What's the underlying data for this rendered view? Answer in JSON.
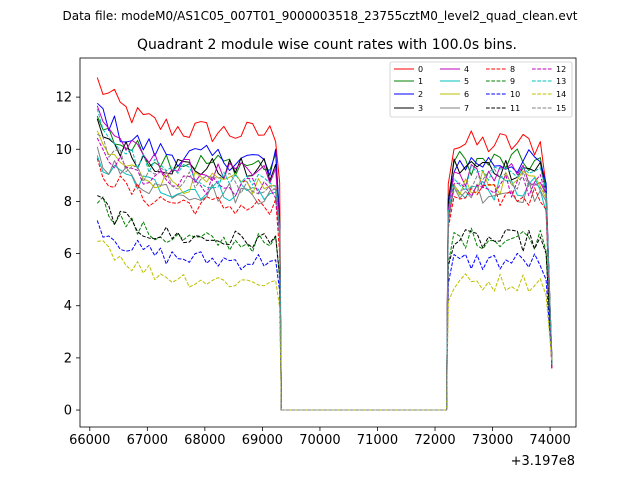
{
  "chart_data": {
    "type": "line",
    "suptitle": "Data file: modeM0/AS1C05_007T01_9000003518_23755cztM0_level2_quad_clean.evt",
    "title": "Quadrant 2 module wise count rates with 100.0s bins.",
    "xlabel": "",
    "ylabel": "",
    "x_offset_label": "+3.197e8",
    "xlim": [
      65830,
      74450
    ],
    "ylim": [
      -0.65,
      13.5
    ],
    "x_ticks": [
      66000,
      67000,
      68000,
      69000,
      70000,
      71000,
      72000,
      73000,
      74000
    ],
    "x_tick_labels": [
      "66000",
      "67000",
      "68000",
      "69000",
      "70000",
      "71000",
      "72000",
      "73000",
      "74000"
    ],
    "y_ticks": [
      0,
      2,
      4,
      6,
      8,
      10,
      12
    ],
    "y_tick_labels": [
      "0",
      "2",
      "4",
      "6",
      "8",
      "10",
      "12"
    ],
    "legend_position": "top-right",
    "segments": {
      "seg1": {
        "start": 66130,
        "step": 100,
        "count": 32,
        "x_end": 69300
      },
      "seg2": {
        "start": 72230,
        "step": 100,
        "count": 18,
        "x_end": 74030
      },
      "gap_x": [
        69330,
        72200
      ]
    },
    "series": [
      {
        "name": "0",
        "color": "#ff0000",
        "dash": "solid",
        "level1": 10.6,
        "level2": 10.2,
        "first": 12.6,
        "edge1": 10.9,
        "edge2": 8.6
      },
      {
        "name": "1",
        "color": "#008000",
        "dash": "solid",
        "level1": 9.4,
        "level2": 9.5,
        "first": 11.1,
        "edge1": 9.2,
        "edge2": 8.4
      },
      {
        "name": "2",
        "color": "#0000ff",
        "dash": "solid",
        "level1": 9.6,
        "level2": 9.5,
        "first": 11.7,
        "edge1": 9.0,
        "edge2": 8.7
      },
      {
        "name": "3",
        "color": "#000000",
        "dash": "solid",
        "level1": 9.2,
        "level2": 9.3,
        "first": 10.9,
        "edge1": 8.8,
        "edge2": 8.3
      },
      {
        "name": "4",
        "color": "#bf00bf",
        "dash": "solid",
        "level1": 9.0,
        "level2": 9.0,
        "first": 11.6,
        "edge1": 8.7,
        "edge2": 8.3
      },
      {
        "name": "5",
        "color": "#00bfbf",
        "dash": "solid",
        "level1": 8.4,
        "level2": 8.5,
        "first": 9.5,
        "edge1": 8.3,
        "edge2": 7.6
      },
      {
        "name": "6",
        "color": "#bfbf00",
        "dash": "solid",
        "level1": 8.6,
        "level2": 8.7,
        "first": 10.3,
        "edge1": 8.6,
        "edge2": 8.1
      },
      {
        "name": "7",
        "color": "#808080",
        "dash": "solid",
        "level1": 8.3,
        "level2": 8.4,
        "first": 9.9,
        "edge1": 8.4,
        "edge2": 8.0
      },
      {
        "name": "8",
        "color": "#ff0000",
        "dash": "dashed",
        "level1": 7.8,
        "level2": 8.2,
        "first": 9.4,
        "edge1": 7.5,
        "edge2": 7.7
      },
      {
        "name": "9",
        "color": "#008000",
        "dash": "dashed",
        "level1": 6.4,
        "level2": 6.6,
        "first": 8.2,
        "edge1": 6.3,
        "edge2": 6.1
      },
      {
        "name": "10",
        "color": "#0000ff",
        "dash": "dashed",
        "level1": 5.7,
        "level2": 5.7,
        "first": 7.2,
        "edge1": 5.7,
        "edge2": 5.0
      },
      {
        "name": "11",
        "color": "#000000",
        "dash": "dashed",
        "level1": 6.5,
        "level2": 6.5,
        "first": 8.1,
        "edge1": 6.4,
        "edge2": 6.0
      },
      {
        "name": "12",
        "color": "#bf00bf",
        "dash": "dashed",
        "level1": 8.5,
        "level2": 8.6,
        "first": 10.1,
        "edge1": 8.5,
        "edge2": 8.2
      },
      {
        "name": "13",
        "color": "#00bfbf",
        "dash": "dashed",
        "level1": 8.8,
        "level2": 8.9,
        "first": 11.3,
        "edge1": 8.7,
        "edge2": 8.4
      },
      {
        "name": "14",
        "color": "#bfbf00",
        "dash": "dashed",
        "level1": 4.9,
        "level2": 4.9,
        "first": 6.8,
        "edge1": 4.9,
        "edge2": 4.4
      },
      {
        "name": "15",
        "color": "#808080",
        "dash": "dashed",
        "level1": 8.7,
        "level2": 8.9,
        "first": 10.5,
        "edge1": 8.6,
        "edge2": 8.3
      }
    ]
  }
}
